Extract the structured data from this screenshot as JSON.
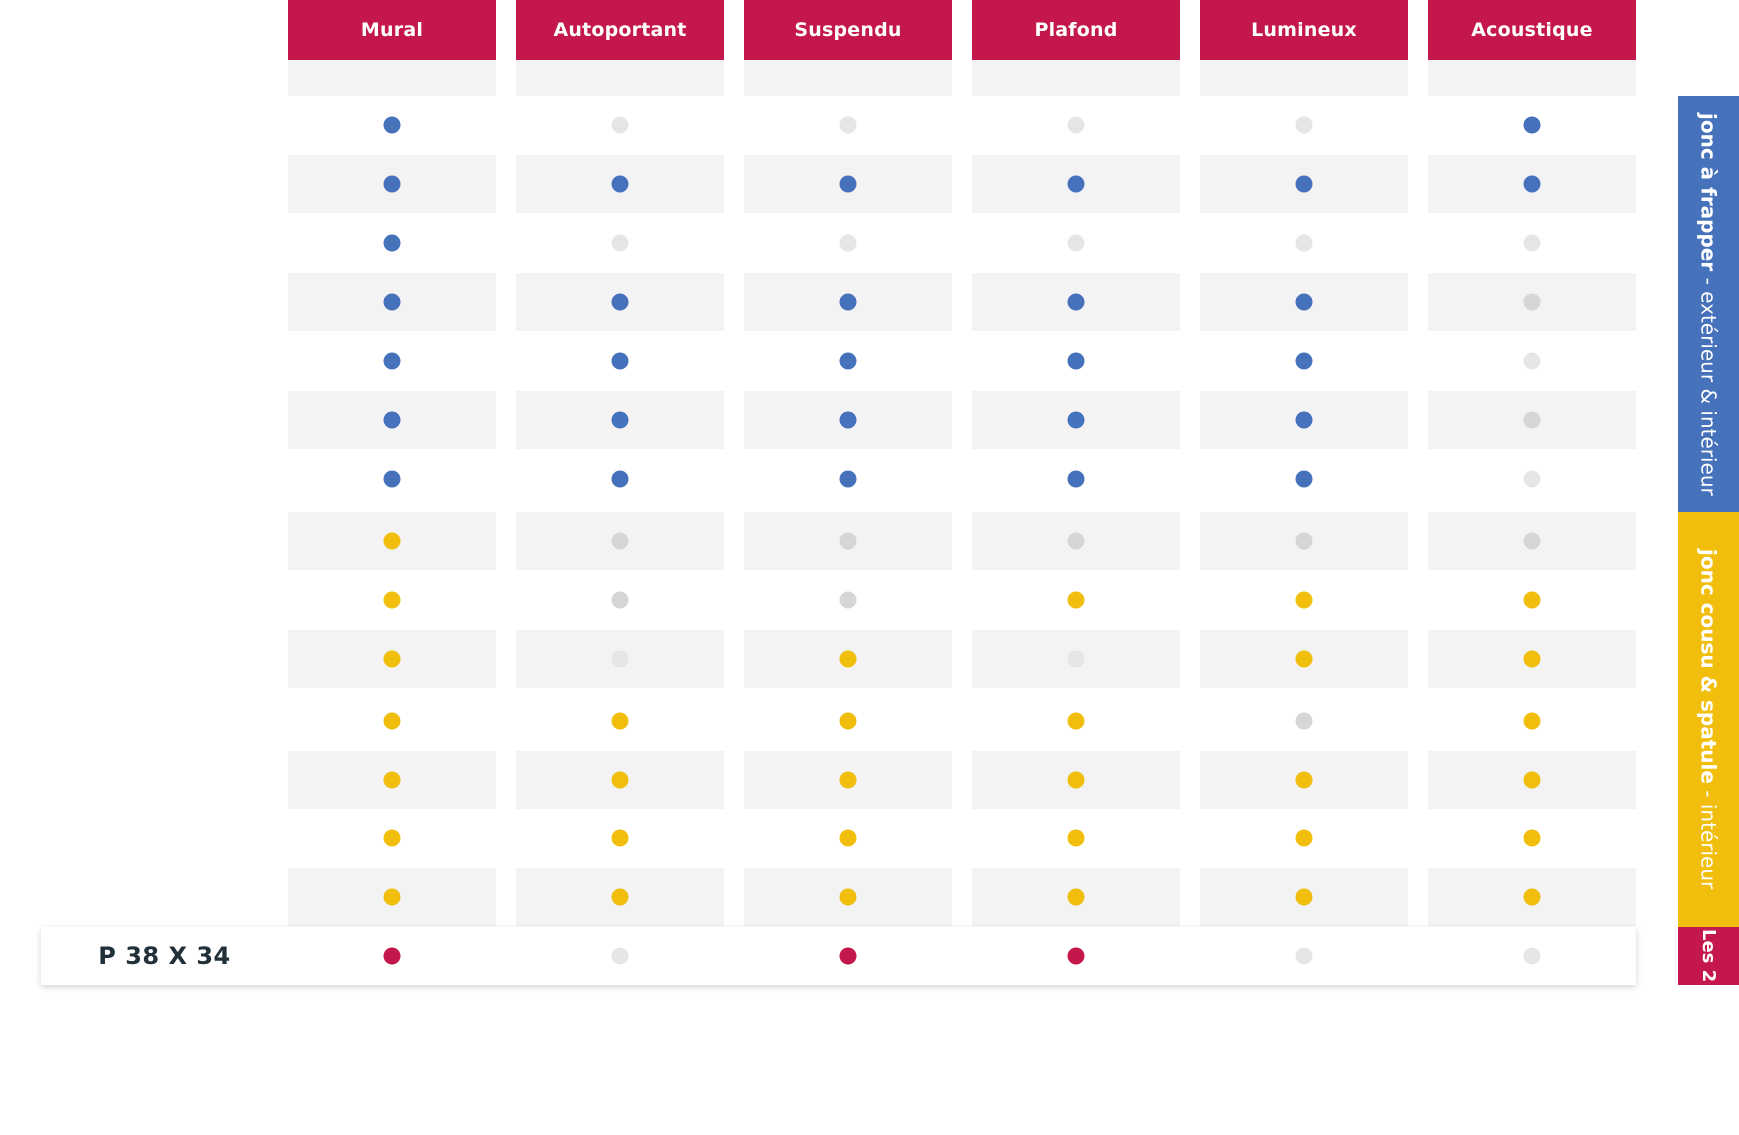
{
  "columns": [
    "Mural",
    "Autoportant",
    "Suspendu",
    "Plafond",
    "Lumineux",
    "Acoustique"
  ],
  "colors": {
    "blue": "#4671bb",
    "yellow": "#f2be0d",
    "red": "#c4174b",
    "grey_light": "#e6e6e6",
    "grey": "#d6d6d6",
    "header_bg": "#c4174b",
    "shade": "#f3f3f3"
  },
  "rows": [
    {
      "cells": [
        "blue",
        "grey_light",
        "grey_light",
        "grey_light",
        "grey_light",
        "blue"
      ]
    },
    {
      "cells": [
        "blue",
        "blue",
        "blue",
        "blue",
        "blue",
        "blue"
      ]
    },
    {
      "cells": [
        "blue",
        "grey_light",
        "grey_light",
        "grey_light",
        "grey_light",
        "grey_light"
      ]
    },
    {
      "cells": [
        "blue",
        "blue",
        "blue",
        "blue",
        "blue",
        "grey"
      ]
    },
    {
      "cells": [
        "blue",
        "blue",
        "blue",
        "blue",
        "blue",
        "grey_light"
      ]
    },
    {
      "cells": [
        "blue",
        "blue",
        "blue",
        "blue",
        "blue",
        "grey"
      ]
    },
    {
      "cells": [
        "blue",
        "blue",
        "blue",
        "blue",
        "blue",
        "grey_light"
      ]
    },
    {
      "cells": [
        "yellow",
        "grey",
        "grey",
        "grey",
        "grey",
        "grey"
      ]
    },
    {
      "cells": [
        "yellow",
        "grey",
        "grey",
        "yellow",
        "yellow",
        "yellow"
      ]
    },
    {
      "cells": [
        "yellow",
        "grey_light",
        "yellow",
        "grey_light",
        "yellow",
        "yellow"
      ]
    },
    {
      "cells": [
        "yellow",
        "yellow",
        "yellow",
        "yellow",
        "grey",
        "yellow"
      ]
    },
    {
      "cells": [
        "yellow",
        "yellow",
        "yellow",
        "yellow",
        "yellow",
        "yellow"
      ]
    },
    {
      "cells": [
        "yellow",
        "yellow",
        "yellow",
        "yellow",
        "yellow",
        "yellow"
      ]
    },
    {
      "cells": [
        "yellow",
        "yellow",
        "yellow",
        "yellow",
        "yellow",
        "yellow"
      ]
    }
  ],
  "highlight_row": {
    "label": "P 38 X 34",
    "cells": [
      "red",
      "grey_light",
      "red",
      "red",
      "grey_light",
      "grey_light"
    ]
  },
  "side_tabs": [
    {
      "bold": "jonc à frapper",
      "light": " - extérieur & intérieur",
      "color": "#4671bb"
    },
    {
      "bold": "jonc cousu & spatule",
      "light": " - intérieur",
      "color": "#f2be0d"
    },
    {
      "bold": "Les 2",
      "light": "",
      "color": "#c4174b"
    }
  ]
}
